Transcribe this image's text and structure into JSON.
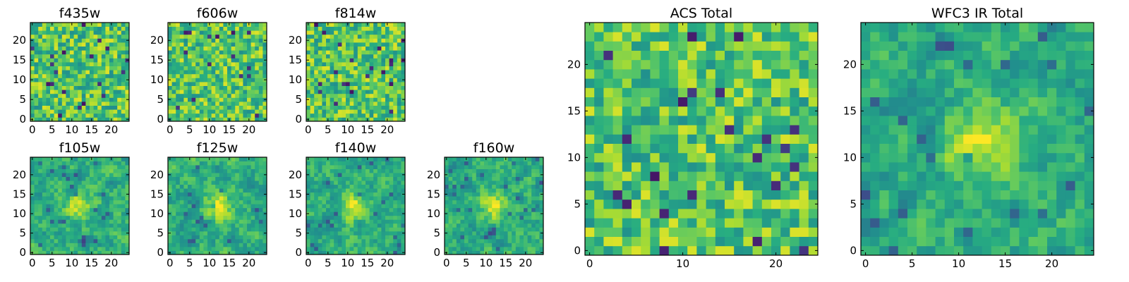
{
  "figure": {
    "colormap": "viridis",
    "colors": {
      "background": "#ffffff",
      "frame": "#000000"
    }
  },
  "chart_data": [
    {
      "type": "heatmap",
      "title": "f435w",
      "grid_size": [
        25,
        25
      ],
      "xlim": [
        0,
        24
      ],
      "ylim": [
        0,
        24
      ],
      "xticks": [
        "0",
        "5",
        "10",
        "15",
        "20"
      ],
      "yticks": [
        "0",
        "5",
        "10",
        "15",
        "20"
      ],
      "grid": false,
      "colormap": "viridis",
      "values_note": "per-pixel noise image, ~mean 0.75 (normalized 0-1)",
      "values": []
    },
    {
      "type": "heatmap",
      "title": "f606w",
      "grid_size": [
        25,
        25
      ],
      "xlim": [
        0,
        24
      ],
      "ylim": [
        0,
        24
      ],
      "xticks": [
        "0",
        "5",
        "10",
        "15",
        "20"
      ],
      "yticks": [
        "0",
        "5",
        "10",
        "15",
        "20"
      ],
      "grid": false,
      "colormap": "viridis",
      "values": []
    },
    {
      "type": "heatmap",
      "title": "f814w",
      "grid_size": [
        25,
        25
      ],
      "xlim": [
        0,
        24
      ],
      "ylim": [
        0,
        24
      ],
      "xticks": [
        "0",
        "5",
        "10",
        "15",
        "20"
      ],
      "yticks": [
        "0",
        "5",
        "10",
        "15",
        "20"
      ],
      "grid": false,
      "colormap": "viridis",
      "values": []
    },
    {
      "type": "heatmap",
      "title": "f105w",
      "grid_size": [
        25,
        25
      ],
      "xlim": [
        0,
        24
      ],
      "ylim": [
        0,
        24
      ],
      "xticks": [
        "0",
        "5",
        "10",
        "15",
        "20"
      ],
      "yticks": [
        "0",
        "5",
        "10",
        "15",
        "20"
      ],
      "grid": false,
      "colormap": "viridis",
      "values": []
    },
    {
      "type": "heatmap",
      "title": "f125w",
      "grid_size": [
        25,
        25
      ],
      "xlim": [
        0,
        24
      ],
      "ylim": [
        0,
        24
      ],
      "xticks": [
        "0",
        "5",
        "10",
        "15",
        "20"
      ],
      "yticks": [
        "0",
        "5",
        "10",
        "15",
        "20"
      ],
      "grid": false,
      "colormap": "viridis",
      "values": []
    },
    {
      "type": "heatmap",
      "title": "f140w",
      "grid_size": [
        25,
        25
      ],
      "xlim": [
        0,
        24
      ],
      "ylim": [
        0,
        24
      ],
      "xticks": [
        "0",
        "5",
        "10",
        "15",
        "20"
      ],
      "yticks": [
        "0",
        "5",
        "10",
        "15",
        "20"
      ],
      "grid": false,
      "colormap": "viridis",
      "values": []
    },
    {
      "type": "heatmap",
      "title": "f160w",
      "grid_size": [
        25,
        25
      ],
      "xlim": [
        0,
        24
      ],
      "ylim": [
        0,
        24
      ],
      "xticks": [
        "0",
        "5",
        "10",
        "15",
        "20"
      ],
      "yticks": [
        "0",
        "5",
        "10",
        "15",
        "20"
      ],
      "grid": false,
      "colormap": "viridis",
      "values": []
    },
    {
      "type": "heatmap",
      "title": "ACS Total",
      "grid_size": [
        25,
        25
      ],
      "xlim": [
        0,
        24
      ],
      "ylim": [
        0,
        24
      ],
      "xticks": [
        "0",
        "10",
        "20"
      ],
      "yticks": [
        "0",
        "5",
        "10",
        "15",
        "20"
      ],
      "grid": false,
      "colormap": "viridis",
      "values": []
    },
    {
      "type": "heatmap",
      "title": "WFC3 IR Total",
      "grid_size": [
        25,
        25
      ],
      "xlim": [
        0,
        24
      ],
      "ylim": [
        0,
        24
      ],
      "xticks": [
        "0",
        "5",
        "10",
        "15",
        "20"
      ],
      "yticks": [
        "0",
        "5",
        "10",
        "15",
        "20"
      ],
      "grid": false,
      "colormap": "viridis",
      "values": []
    }
  ]
}
